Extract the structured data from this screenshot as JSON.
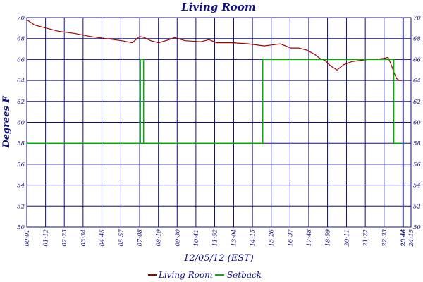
{
  "chart_data": {
    "type": "line",
    "title": "Living Room",
    "xlabel": "12/05/12 (EST)",
    "ylabel": "Degrees F",
    "ylim": [
      50,
      70
    ],
    "yticks": [
      50,
      52,
      54,
      56,
      58,
      60,
      62,
      64,
      66,
      68,
      70
    ],
    "x_range_minutes": [
      1,
      1455
    ],
    "x_ticks": [
      "00:01",
      "01:12",
      "02:23",
      "03:34",
      "04:45",
      "05:57",
      "07:08",
      "08:19",
      "09:30",
      "10:41",
      "11:52",
      "13:04",
      "14:15",
      "15:26",
      "16:37",
      "17:48",
      "18:59",
      "20:11",
      "21:22",
      "22:33",
      "23:44",
      "23:46",
      "24:15"
    ],
    "grid": true,
    "legend_position": "bottom-center",
    "series": [
      {
        "name": "Living Room",
        "color": "#a00000",
        "style": "line",
        "x": [
          1,
          30,
          60,
          120,
          180,
          240,
          300,
          360,
          400,
          428,
          445,
          470,
          500,
          540,
          560,
          600,
          660,
          690,
          720,
          780,
          840,
          900,
          960,
          1000,
          1030,
          1060,
          1090,
          1110,
          1130,
          1150,
          1175,
          1200,
          1230,
          1260,
          1290,
          1320,
          1350,
          1368,
          1380,
          1390,
          1400,
          1410,
          1420
        ],
        "y": [
          69.8,
          69.3,
          69.1,
          68.7,
          68.5,
          68.2,
          68.0,
          67.8,
          67.6,
          68.2,
          68.1,
          67.8,
          67.6,
          67.9,
          68.1,
          67.8,
          67.7,
          67.9,
          67.6,
          67.6,
          67.5,
          67.3,
          67.5,
          67.1,
          67.1,
          66.9,
          66.5,
          66.1,
          65.9,
          65.4,
          65.0,
          65.5,
          65.8,
          65.9,
          66.0,
          66.0,
          66.1,
          66.2,
          65.5,
          64.8,
          64.2,
          64.0,
          64.0
        ]
      },
      {
        "name": "Setback",
        "color": "#00b000",
        "style": "step",
        "x": [
          1,
          431,
          431,
          443,
          443,
          894,
          894,
          1390,
          1390,
          1420
        ],
        "y": [
          58,
          58,
          66,
          66,
          58,
          58,
          66,
          66,
          58,
          58
        ]
      }
    ]
  }
}
